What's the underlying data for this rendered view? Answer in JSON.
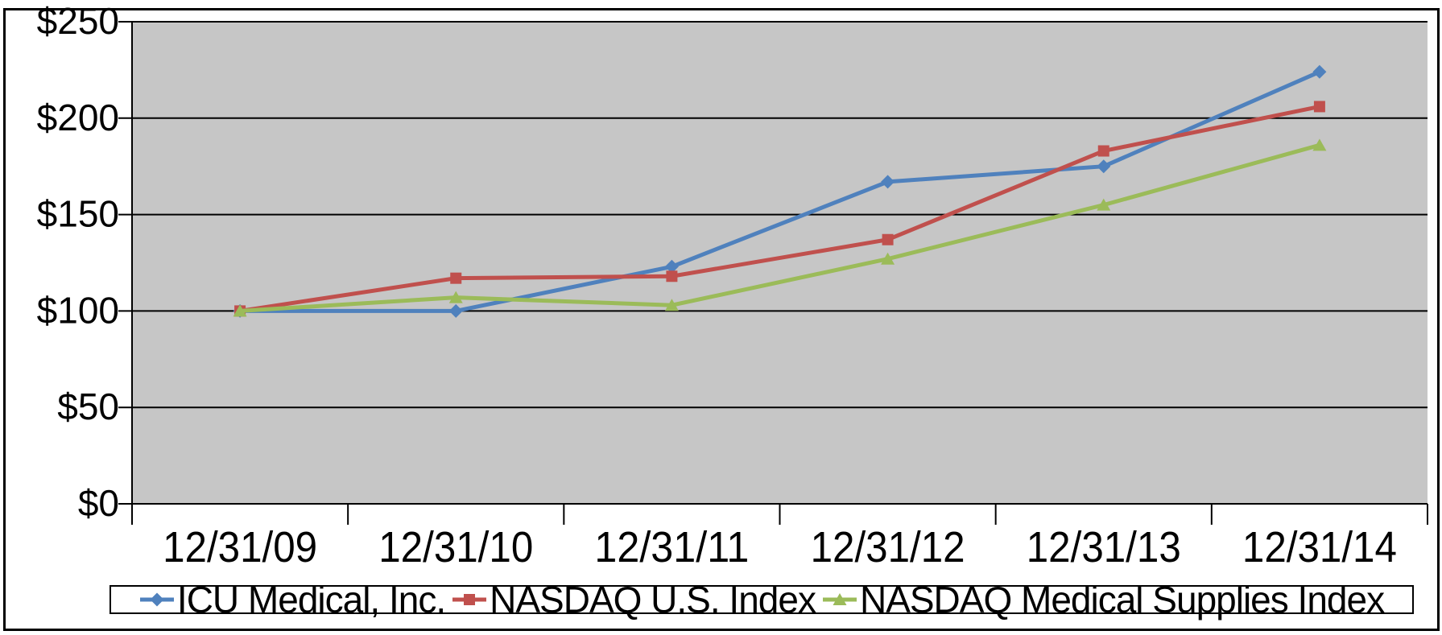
{
  "chart_data": {
    "type": "line",
    "title": "",
    "xlabel": "",
    "ylabel": "",
    "categories": [
      "12/31/09",
      "12/31/10",
      "12/31/11",
      "12/31/12",
      "12/31/13",
      "12/31/14"
    ],
    "series": [
      {
        "name": "ICU Medical, Inc.",
        "color": "#4F81BD",
        "marker": "diamond",
        "values": [
          100,
          100,
          123,
          167,
          175,
          224
        ]
      },
      {
        "name": "NASDAQ U.S. Index",
        "color": "#C0504D",
        "marker": "square",
        "values": [
          100,
          117,
          118,
          137,
          183,
          206
        ]
      },
      {
        "name": "NASDAQ Medical Supplies Index",
        "color": "#9BBB59",
        "marker": "triangle",
        "values": [
          100,
          107,
          103,
          127,
          155,
          186
        ]
      }
    ],
    "ylim": [
      0,
      250
    ],
    "ytick_step": 50,
    "ytick_labels": [
      "$0",
      "$50",
      "$100",
      "$150",
      "$200",
      "$250"
    ],
    "grid": true,
    "legend_position": "bottom",
    "colors": {
      "plot_background": "#C6C6C6",
      "gridline": "#000000",
      "axis": "#000000",
      "text": "#000000",
      "page_background": "#FFFFFF"
    }
  }
}
